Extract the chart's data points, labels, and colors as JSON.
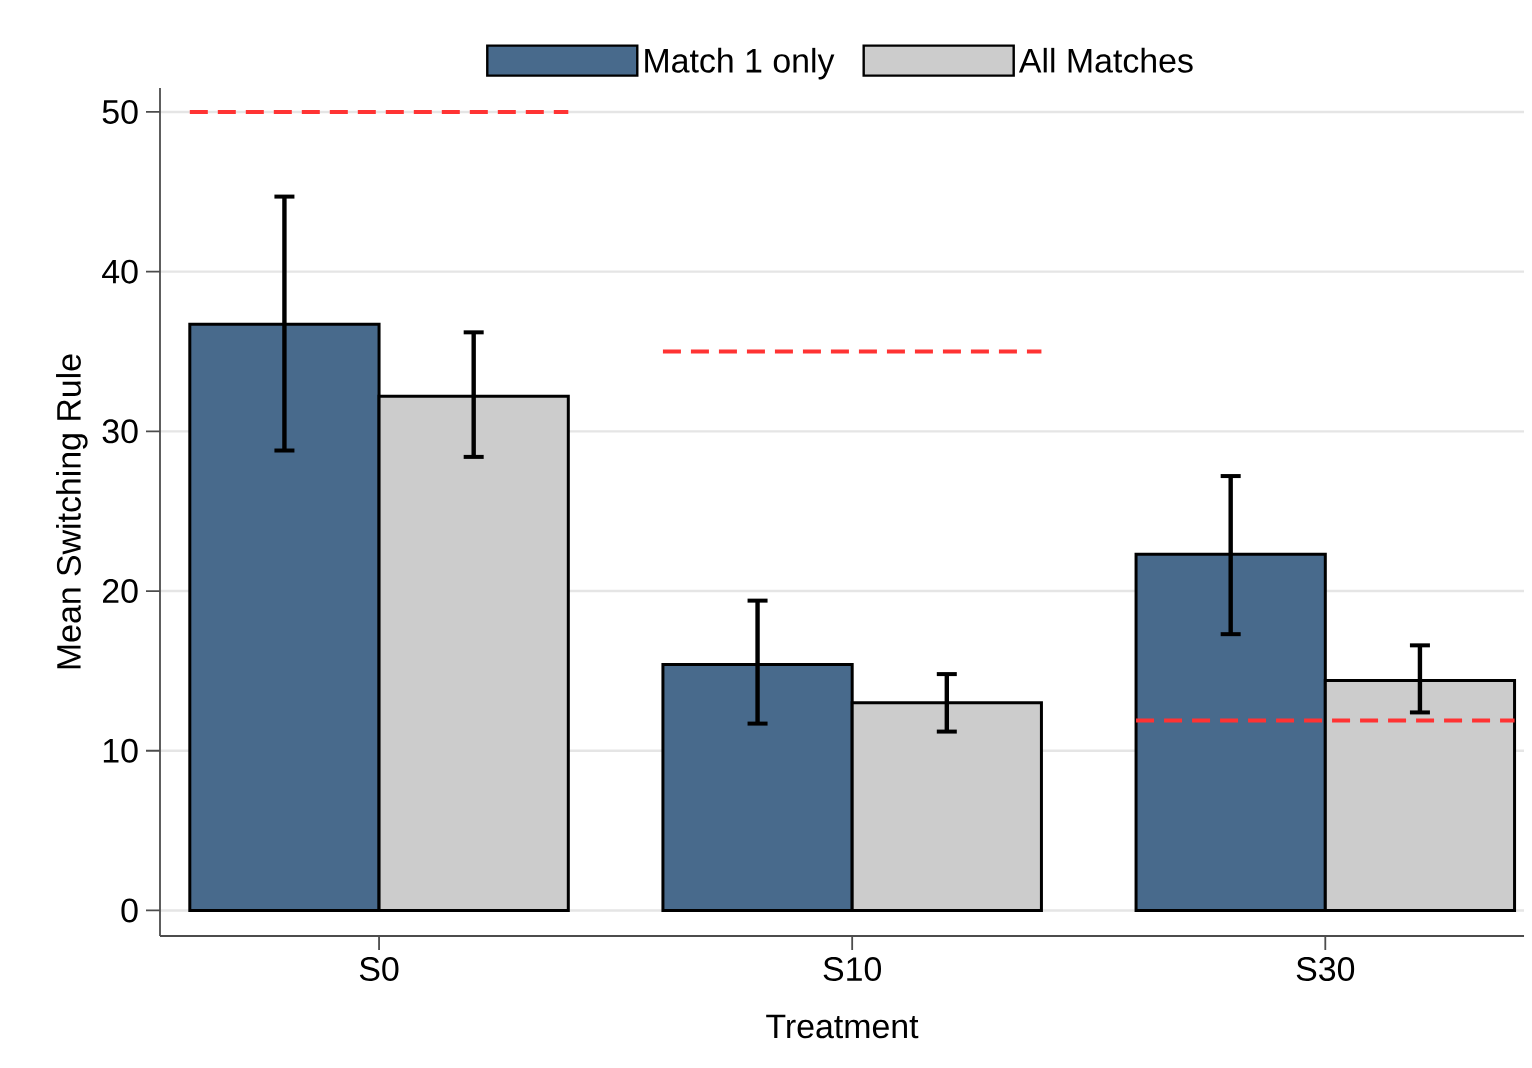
{
  "chart_data": {
    "type": "bar",
    "xlabel": "Treatment",
    "ylabel": "Mean Switching Rule",
    "categories": [
      "S0",
      "S10",
      "S30"
    ],
    "series": [
      {
        "name": "Match 1 only",
        "color": "#486a8c",
        "values": [
          36.7,
          15.4,
          22.3
        ],
        "errors": [
          [
            28.8,
            44.7
          ],
          [
            11.7,
            19.4
          ],
          [
            17.3,
            27.2
          ]
        ]
      },
      {
        "name": "All Matches",
        "color": "#cccccc",
        "values": [
          32.2,
          13.0,
          14.4
        ],
        "errors": [
          [
            28.4,
            36.2
          ],
          [
            11.2,
            14.8
          ],
          [
            12.4,
            16.6
          ]
        ]
      }
    ],
    "ylim": [
      -1.6,
      51.5
    ],
    "yticks": [
      0,
      10,
      20,
      30,
      40,
      50
    ],
    "grid": "y",
    "legend": "top",
    "ref_lines": [
      {
        "axis": "y",
        "value": 50,
        "color": "#ff3333",
        "line_style": "dashed"
      },
      {
        "axis": "y",
        "value": 35,
        "color": "#ff3333",
        "line_style": "dashed"
      },
      {
        "axis": "y",
        "value": 11.9,
        "color": "#ff3333",
        "line_style": "dashed"
      }
    ]
  }
}
